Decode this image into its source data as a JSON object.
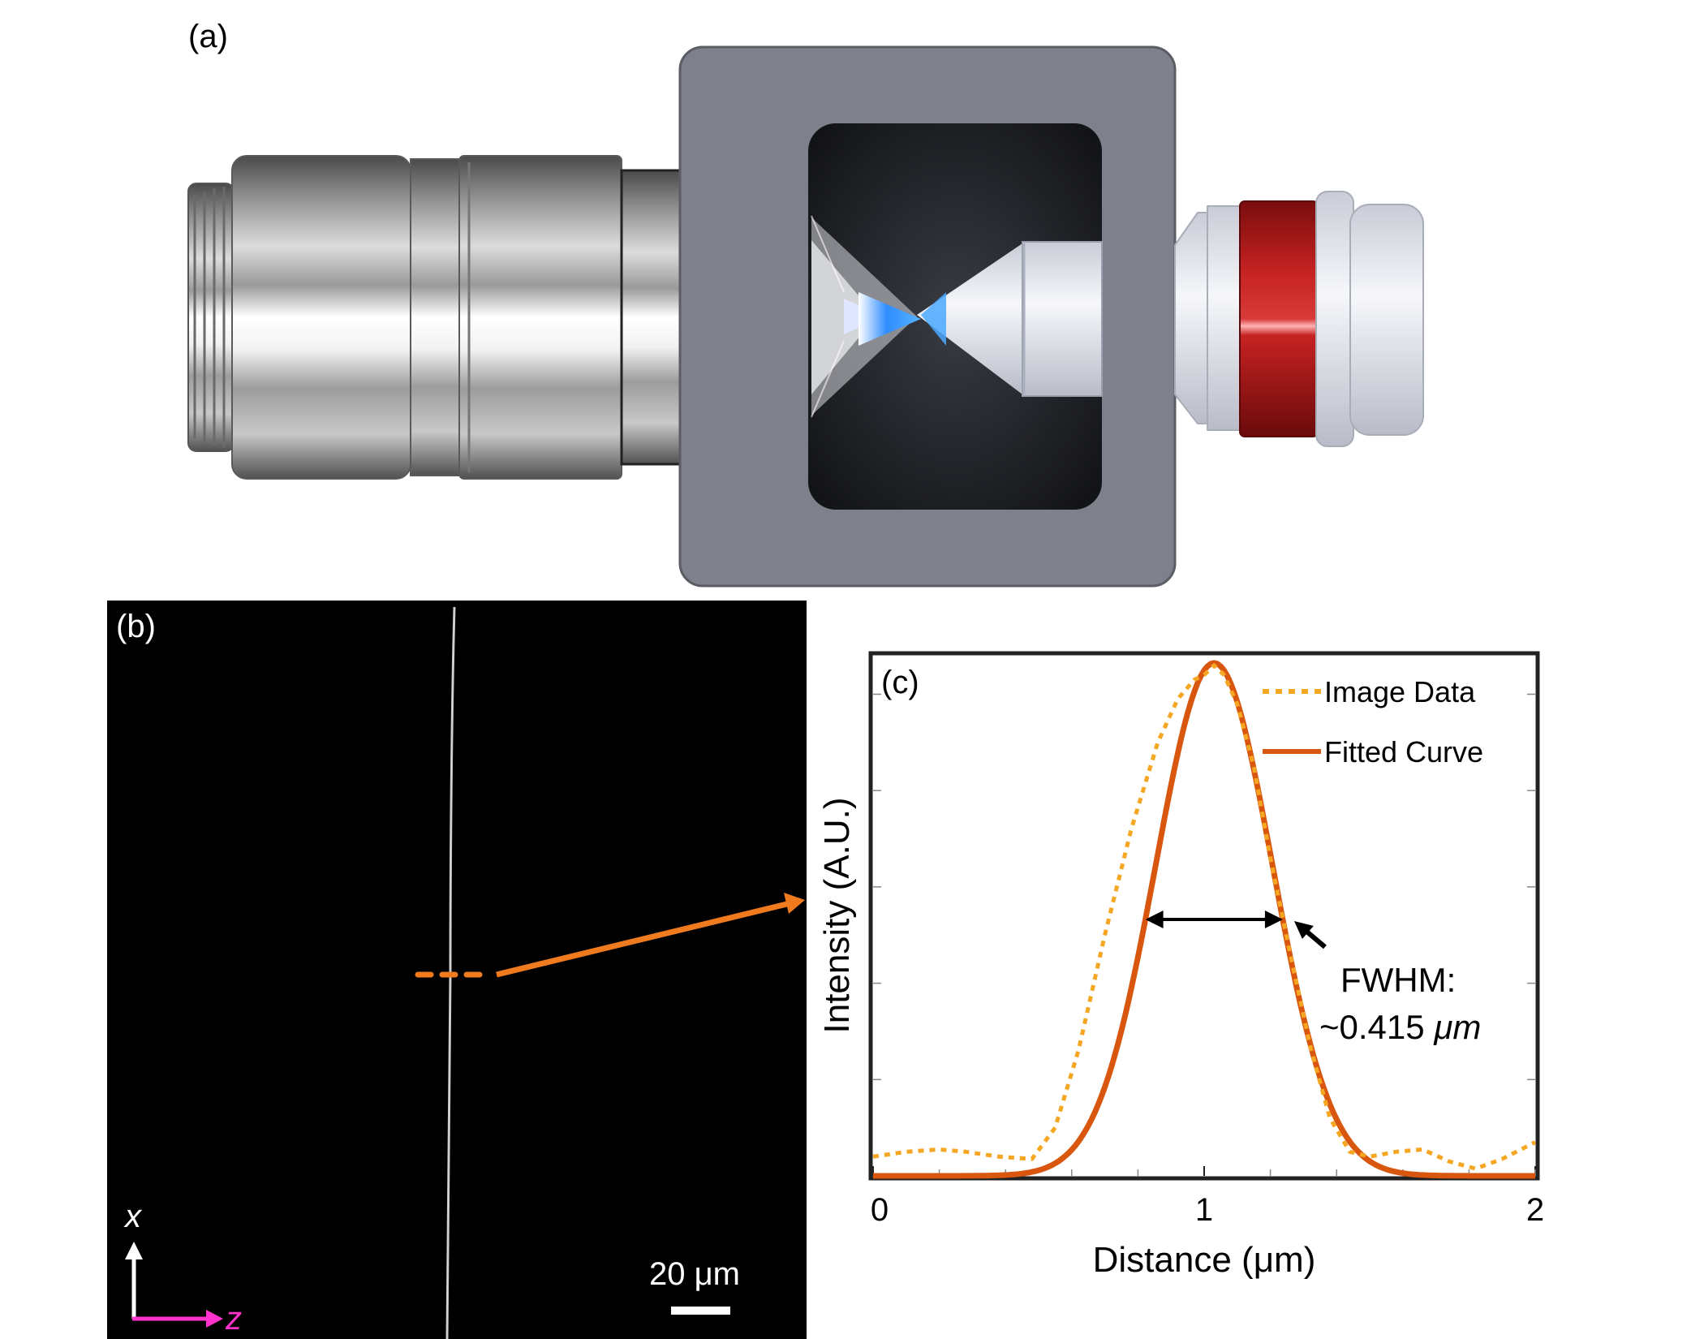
{
  "panels": {
    "a": {
      "label": "(a)"
    },
    "b": {
      "label": "(b)",
      "scale_bar": "20 μm",
      "axis_x_label": "x",
      "axis_z_label": "z",
      "colors": {
        "background": "#000000",
        "sample_line": "#d9d9d9",
        "axis_z": "#ff33cc",
        "marker": "#f07a1e"
      }
    },
    "c": {
      "label": "(c)"
    }
  },
  "chart_data": {
    "type": "line",
    "xlabel": "Distance (μm)",
    "ylabel": "Intensity (A.U.)",
    "xlim": [
      0,
      2
    ],
    "ylim": [
      0,
      1.08
    ],
    "xticks": [
      0,
      1,
      2
    ],
    "grid": false,
    "legend": "top-right",
    "annotation": {
      "line1": "FWHM:",
      "line2_prefix": "~0.415 ",
      "line2_unit": "μm",
      "fwhm_um": 0.415,
      "center_um": 1.03
    },
    "series": [
      {
        "name": "Image Data",
        "style": "dotted",
        "color": "#f5a623",
        "x": [
          0.0,
          0.1,
          0.2,
          0.28,
          0.38,
          0.48,
          0.55,
          0.62,
          0.7,
          0.78,
          0.86,
          0.92,
          0.97,
          1.0,
          1.03,
          1.06,
          1.1,
          1.15,
          1.2,
          1.26,
          1.32,
          1.38,
          1.44,
          1.5,
          1.58,
          1.66,
          1.74,
          1.82,
          1.9,
          2.0
        ],
        "y": [
          0.04,
          0.05,
          0.055,
          0.05,
          0.04,
          0.035,
          0.1,
          0.26,
          0.5,
          0.72,
          0.9,
          0.99,
          1.03,
          1.04,
          1.06,
          1.04,
          0.98,
          0.85,
          0.66,
          0.46,
          0.27,
          0.12,
          0.05,
          0.04,
          0.05,
          0.055,
          0.03,
          0.015,
          0.035,
          0.07
        ]
      },
      {
        "name": "Fitted Curve",
        "style": "solid",
        "color": "#d9560f",
        "model": "gaussian",
        "amplitude": 1.065,
        "center": 1.03,
        "fwhm": 0.415
      }
    ]
  }
}
